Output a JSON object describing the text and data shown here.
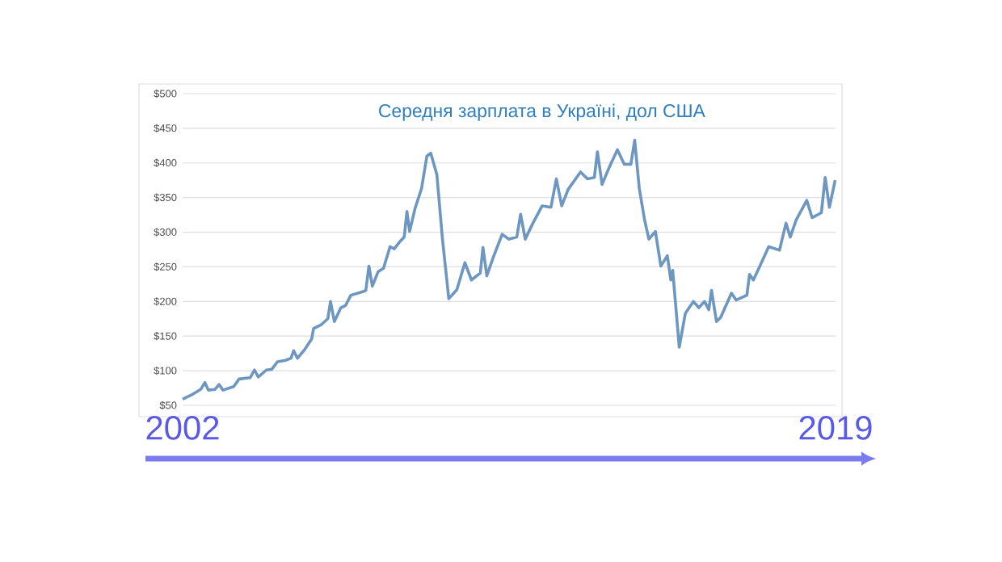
{
  "chart_data": {
    "type": "line",
    "title": "Середня зарплата в Україні, дол США",
    "x": [
      2002.0,
      2002.26,
      2002.47,
      2002.58,
      2002.67,
      2002.84,
      2002.95,
      2003.05,
      2003.33,
      2003.47,
      2003.76,
      2003.87,
      2003.97,
      2004.18,
      2004.32,
      2004.47,
      2004.68,
      2004.82,
      2004.89,
      2004.99,
      2005.17,
      2005.36,
      2005.41,
      2005.6,
      2005.78,
      2005.85,
      2005.95,
      2006.12,
      2006.24,
      2006.38,
      2006.69,
      2006.77,
      2006.85,
      2006.94,
      2007.09,
      2007.23,
      2007.4,
      2007.51,
      2007.65,
      2007.77,
      2007.84,
      2007.91,
      2008.05,
      2008.22,
      2008.36,
      2008.46,
      2008.62,
      2008.76,
      2008.93,
      2009.14,
      2009.35,
      2009.52,
      2009.75,
      2009.82,
      2009.92,
      2010.09,
      2010.32,
      2010.49,
      2010.7,
      2010.8,
      2010.92,
      2011.12,
      2011.36,
      2011.59,
      2011.73,
      2011.87,
      2012.04,
      2012.36,
      2012.54,
      2012.72,
      2012.8,
      2012.92,
      2013.11,
      2013.32,
      2013.5,
      2013.67,
      2013.77,
      2013.89,
      2014.03,
      2014.14,
      2014.31,
      2014.45,
      2014.62,
      2014.71,
      2014.76,
      2014.93,
      2015.09,
      2015.3,
      2015.44,
      2015.59,
      2015.7,
      2015.77,
      2015.9,
      2016.01,
      2016.29,
      2016.41,
      2016.69,
      2016.76,
      2016.86,
      2017.03,
      2017.26,
      2017.54,
      2017.71,
      2017.82,
      2017.97,
      2018.25,
      2018.39,
      2018.63,
      2018.73,
      2018.84,
      2018.99
    ],
    "series": [
      {
        "color": "#6d97c0",
        "values": [
          59,
          66,
          73,
          83,
          72,
          73,
          80,
          72,
          77,
          88,
          90,
          101,
          91,
          101,
          102,
          113,
          115,
          118,
          129,
          118,
          130,
          146,
          161,
          166,
          175,
          200,
          171,
          191,
          194,
          209,
          214,
          216,
          251,
          222,
          243,
          248,
          279,
          276,
          286,
          293,
          330,
          301,
          334,
          363,
          410,
          414,
          383,
          293,
          204,
          217,
          256,
          231,
          241,
          278,
          237,
          264,
          297,
          290,
          293,
          326,
          290,
          313,
          338,
          336,
          377,
          338,
          362,
          387,
          377,
          379,
          416,
          369,
          394,
          419,
          398,
          398,
          433,
          363,
          317,
          290,
          301,
          251,
          266,
          231,
          245,
          134,
          183,
          200,
          191,
          200,
          188,
          216,
          171,
          177,
          212,
          202,
          209,
          239,
          231,
          251,
          279,
          274,
          313,
          293,
          317,
          346,
          321,
          328,
          379,
          336,
          375
        ]
      }
    ],
    "xlim": [
      2002,
      2019
    ],
    "xticks": [
      2002,
      2019
    ],
    "ylim": [
      50,
      500
    ],
    "yticks": [
      {
        "value": 50,
        "label": "$50"
      },
      {
        "value": 100,
        "label": "$100"
      },
      {
        "value": 150,
        "label": "$150"
      },
      {
        "value": 200,
        "label": "$200"
      },
      {
        "value": 250,
        "label": "$250"
      },
      {
        "value": 300,
        "label": "$300"
      },
      {
        "value": 350,
        "label": "$350"
      },
      {
        "value": 400,
        "label": "$400"
      },
      {
        "value": 450,
        "label": "$450"
      },
      {
        "value": 500,
        "label": "$500"
      }
    ],
    "grid": "y",
    "marker": "none",
    "line_style": "solid"
  }
}
